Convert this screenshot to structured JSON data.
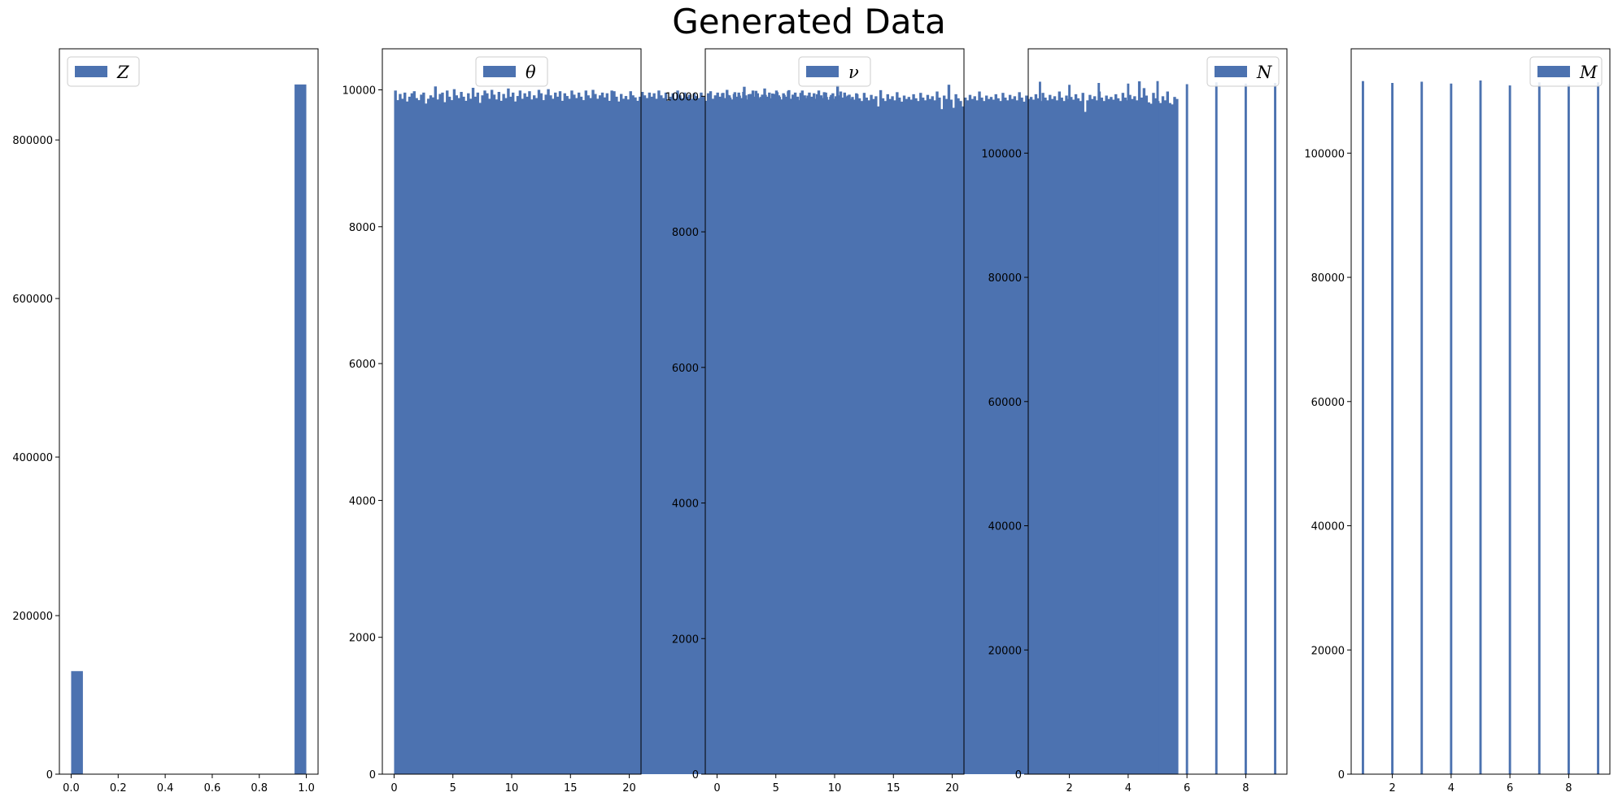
{
  "figure": {
    "title": "Generated Data",
    "bar_color": "#4c72b0"
  },
  "chart_data": [
    {
      "type": "bar",
      "legend": "Z",
      "legend_position": "top-left",
      "xlim": [
        -0.05,
        1.05
      ],
      "ylim": [
        0,
        915000
      ],
      "xticks": [
        0.0,
        0.2,
        0.4,
        0.6,
        0.8,
        1.0
      ],
      "xtick_labels": [
        "0.0",
        "0.2",
        "0.4",
        "0.6",
        "0.8",
        "1.0"
      ],
      "yticks": [
        0,
        200000,
        400000,
        600000,
        800000
      ],
      "ytick_labels": [
        "0",
        "200000",
        "400000",
        "600000",
        "800000"
      ],
      "bin_width": 0.05,
      "x": [
        0.0,
        0.95
      ],
      "values": [
        130000,
        870000
      ]
    },
    {
      "type": "bar",
      "legend": "θ",
      "legend_position": "top-center",
      "xlim": [
        -1,
        21
      ],
      "ylim": [
        0,
        10600
      ],
      "xticks": [
        0,
        5,
        10,
        15,
        20
      ],
      "xtick_labels": [
        "0",
        "5",
        "10",
        "15",
        "20"
      ],
      "yticks": [
        0,
        2000,
        4000,
        6000,
        8000,
        10000
      ],
      "ytick_labels": [
        "0",
        "2000",
        "4000",
        "6000",
        "8000",
        "10000"
      ],
      "bin_width": 0.2,
      "x_start": 0,
      "values": [
        9990,
        9850,
        9940,
        9870,
        9960,
        9830,
        9900,
        9950,
        9980,
        9880,
        9850,
        9930,
        9960,
        9800,
        9870,
        9920,
        9890,
        10050,
        9860,
        9940,
        9960,
        9820,
        9990,
        9900,
        9850,
        10010,
        9920,
        9880,
        9970,
        9900,
        9840,
        9950,
        9870,
        10030,
        9900,
        9960,
        9810,
        9920,
        9990,
        9950,
        9870,
        10000,
        9930,
        9860,
        9970,
        9840,
        9940,
        9880,
        10020,
        9900,
        9960,
        9830,
        9910,
        9990,
        9870,
        9950,
        9900,
        9980,
        9860,
        9920,
        9880,
        10000,
        9950,
        9850,
        9930,
        10010,
        9920,
        9870,
        9960,
        9900,
        9980,
        9840,
        9950,
        9910,
        9870,
        9990,
        9930,
        9880,
        9960,
        9900,
        9850,
        9990,
        9920,
        9880,
        10000,
        9940,
        9870,
        9920,
        9960,
        9890,
        9950,
        9840,
        9990,
        9980,
        9900,
        9830,
        9940,
        9870,
        9910,
        9860,
        9980,
        9920,
        9890,
        9840,
        9900,
        9970,
        9920,
        9880,
        9960,
        9900,
        9950,
        9870,
        9990,
        9920,
        9880,
        9960,
        9840,
        9900,
        9950,
        9870,
        9990,
        9920,
        9880,
        9960,
        9900,
        9930,
        9870,
        9950,
        9910,
        9880,
        9960,
        9900,
        9840,
        9950,
        9980,
        9870,
        9920,
        9960,
        9900,
        9950,
        9880,
        10000,
        9920,
        9860,
        9940,
        9900,
        9960,
        9880,
        9970,
        9920,
        9860,
        9940,
        9990,
        9900,
        9950,
        9880,
        9930,
        10020,
        9900,
        9960,
        9870,
        9940,
        9990,
        9920,
        9860,
        9950,
        9900,
        9980,
        9870,
        9930,
        9960,
        9900,
        9850,
        9990,
        9920,
        9880,
        9960,
        9900,
        9950,
        9870,
        9990,
        9920,
        9880,
        9960,
        9840,
        9900,
        9950,
        9870,
        10070,
        9920,
        9880,
        9960,
        9900,
        9930,
        9870,
        9820,
        9950
      ]
    },
    {
      "type": "bar",
      "legend": "ν",
      "legend_position": "top-center",
      "xlim": [
        -1,
        21
      ],
      "ylim": [
        0,
        10700
      ],
      "xticks": [
        0,
        5,
        10,
        15,
        20
      ],
      "xtick_labels": [
        "0",
        "5",
        "10",
        "15",
        "20"
      ],
      "yticks": [
        0,
        2000,
        4000,
        6000,
        8000,
        10000
      ],
      "ytick_labels": [
        "0",
        "2000",
        "4000",
        "6000",
        "8000",
        "10000"
      ],
      "bin_width": 0.2,
      "x_start": 0,
      "values": [
        9870,
        9930,
        10050,
        9950,
        10020,
        9980,
        9940,
        10060,
        9900,
        10010,
        9960,
        10140,
        9930,
        10030,
        9970,
        9920,
        10080,
        9950,
        9990,
        9940,
        10020,
        9880,
        9970,
        10040,
        9930,
        10060,
        9990,
        9950,
        10020,
        9960,
        10090,
        9940,
        10000,
        9970,
        9920,
        10050,
        9980,
        9930,
        10010,
        9960,
        9990,
        9940,
        10030,
        9970,
        9920,
        10060,
        9990,
        9950,
        10020,
        9960,
        10000,
        9940,
        10070,
        9980,
        9930,
        10010,
        9960,
        9990,
        9950,
        10030,
        9970,
        9930,
        10050,
        9980,
        9940,
        10020,
        9960,
        10000,
        9850,
        10090,
        9970,
        9930,
        10030,
        9960,
        10000,
        9940,
        10060,
        9980,
        9920,
        10010,
        9960,
        9990,
        9950,
        10030,
        9970,
        9930,
        10050,
        9980,
        9940,
        10020,
        9960,
        10000,
        9940,
        10070,
        9980,
        9810,
        10010,
        9960,
        10170,
        9950,
        9830,
        10030,
        9970,
        9930,
        9850,
        9980,
        9940,
        10020,
        9960,
        10000,
        9940,
        10070,
        9980,
        9930,
        10010,
        9960,
        9990,
        9950,
        10030,
        9970,
        9930,
        10050,
        9980,
        9940,
        10020,
        9960,
        10000,
        9940,
        10060,
        9980,
        9920,
        10010,
        9960,
        9990,
        9950,
        10030,
        9970,
        9930,
        10050,
        9980,
        9940,
        10020,
        9960,
        10000,
        9940,
        10070,
        9980,
        9930,
        10010,
        9960,
        9990,
        9950,
        10030,
        9970,
        9930,
        10050,
        9770,
        9940,
        10020,
        9960,
        10000,
        9940,
        10070,
        9980,
        9930,
        10010,
        9960,
        9990,
        9950,
        10030,
        9970,
        9930,
        10050,
        9980,
        9940,
        10020,
        9960,
        10000,
        9940,
        10220,
        9980,
        10120,
        10010,
        9910,
        9890,
        10050,
        9970,
        9930,
        9900,
        10000,
        9940,
        10070,
        9900,
        9880,
        9990,
        9960
      ]
    },
    {
      "type": "bar",
      "legend": "N",
      "legend_position": "top-right",
      "xlim": [
        0.6,
        9.4
      ],
      "ylim": [
        0,
        116800
      ],
      "xticks": [
        2,
        4,
        6,
        8
      ],
      "xtick_labels": [
        "2",
        "4",
        "6",
        "8"
      ],
      "yticks": [
        0,
        20000,
        40000,
        60000,
        80000,
        100000
      ],
      "ytick_labels": [
        "0",
        "20000",
        "40000",
        "60000",
        "80000",
        "100000"
      ],
      "bin_width": 0.08,
      "x": [
        1,
        2,
        3,
        4,
        5,
        6,
        7,
        8,
        9
      ],
      "values": [
        111500,
        111000,
        111300,
        111200,
        111600,
        111100,
        111400,
        111200,
        111300
      ]
    },
    {
      "type": "bar",
      "legend": "M",
      "legend_position": "top-right",
      "xlim": [
        0.6,
        9.4
      ],
      "ylim": [
        0,
        116800
      ],
      "xticks": [
        2,
        4,
        6,
        8
      ],
      "xtick_labels": [
        "2",
        "4",
        "6",
        "8"
      ],
      "yticks": [
        0,
        20000,
        40000,
        60000,
        80000,
        100000
      ],
      "ytick_labels": [
        "0",
        "20000",
        "40000",
        "60000",
        "80000",
        "100000"
      ],
      "bin_width": 0.08,
      "x": [
        1,
        2,
        3,
        4,
        5,
        6,
        7,
        8,
        9
      ],
      "values": [
        111600,
        111300,
        111500,
        111200,
        111700,
        110900,
        111400,
        111100,
        111400
      ]
    }
  ]
}
